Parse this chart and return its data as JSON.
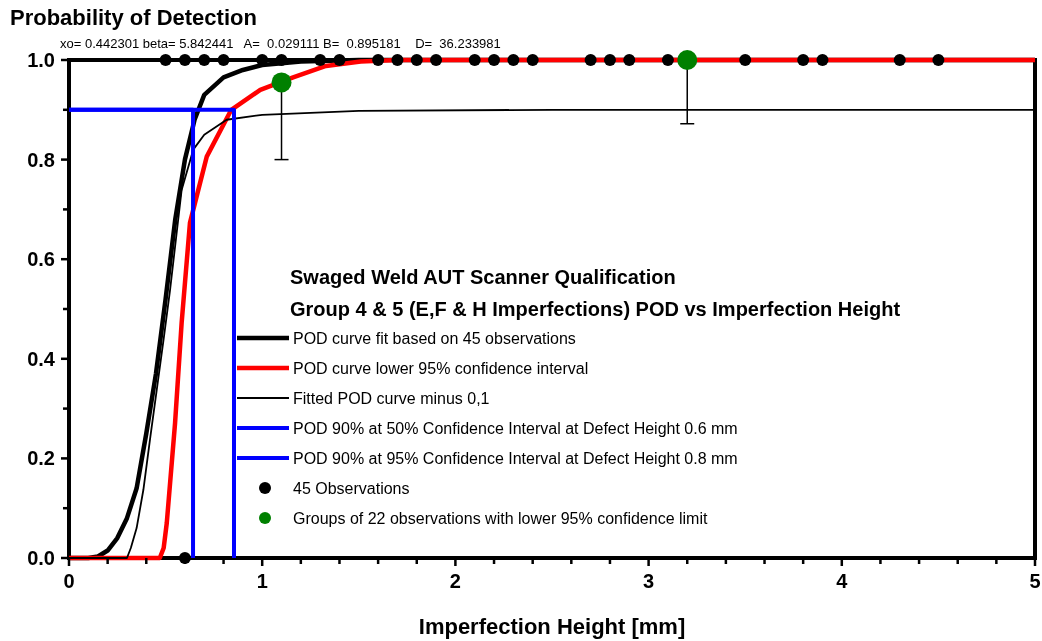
{
  "chart_data": {
    "type": "line",
    "title": "Probability of Detection",
    "subtitle": "xo= 0.442301 beta= 5.842441   A=  0.029111 B=  0.895181    D=  36.233981",
    "xlabel": "Imperfection Height [mm]",
    "legend_title": "Swaged Weld AUT Scanner Qualification\nGroup 4 & 5 (E,F & H Imperfections) POD vs Imperfection Height",
    "legend": "bottom",
    "grid": false,
    "xlim": [
      0,
      5
    ],
    "ylim": [
      0,
      1
    ],
    "xticks": [
      0,
      {
        "value": 0.2,
        "label": null
      },
      {
        "value": 0.4,
        "label": null
      },
      {
        "value": 0.6,
        "label": null
      },
      {
        "value": 0.8,
        "label": null
      },
      1,
      {
        "value": 1.2,
        "label": null
      },
      {
        "value": 1.4,
        "label": null
      },
      {
        "value": 1.6,
        "label": null
      },
      {
        "value": 1.8,
        "label": null
      },
      2,
      {
        "value": 2.2,
        "label": null
      },
      {
        "value": 2.4,
        "label": null
      },
      {
        "value": 2.6,
        "label": null
      },
      {
        "value": 2.8,
        "label": null
      },
      3,
      {
        "value": 3.2,
        "label": null
      },
      {
        "value": 3.4,
        "label": null
      },
      {
        "value": 3.6,
        "label": null
      },
      {
        "value": 3.8,
        "label": null
      },
      4,
      {
        "value": 4.2,
        "label": null
      },
      {
        "value": 4.4,
        "label": null
      },
      {
        "value": 4.6,
        "label": null
      },
      {
        "value": 4.8,
        "label": null
      },
      5
    ],
    "yticks": [
      {
        "value": 0,
        "label": "0.0"
      },
      {
        "value": 0.1,
        "label": null
      },
      {
        "value": 0.2,
        "label": "0.2"
      },
      {
        "value": 0.3,
        "label": null
      },
      {
        "value": 0.4,
        "label": "0.4"
      },
      {
        "value": 0.5,
        "label": null
      },
      {
        "value": 0.6,
        "label": "0.6"
      },
      {
        "value": 0.7,
        "label": null
      },
      {
        "value": 0.8,
        "label": "0.8"
      },
      {
        "value": 0.9,
        "label": null
      },
      {
        "value": 1,
        "label": "1.0"
      }
    ],
    "series": [
      {
        "name": "POD curve fit based on 45 observations",
        "color": "#000000",
        "x": [
          0,
          0.1,
          0.15,
          0.2,
          0.25,
          0.3,
          0.35,
          0.4,
          0.45,
          0.5,
          0.55,
          0.6,
          0.65,
          0.7,
          0.8,
          0.9,
          1.0,
          1.2,
          1.5,
          5
        ],
        "values": [
          0,
          0,
          0.003,
          0.015,
          0.04,
          0.08,
          0.14,
          0.25,
          0.37,
          0.52,
          0.68,
          0.8,
          0.88,
          0.93,
          0.965,
          0.98,
          0.99,
          0.997,
          1,
          1
        ]
      },
      {
        "name": "POD curve lower 95% confidence interval",
        "color": "#ff0000",
        "x": [
          0,
          0.47,
          0.49,
          0.506,
          0.549,
          0.583,
          0.626,
          0.713,
          0.84,
          0.99,
          1.16,
          1.33,
          1.51,
          1.7,
          5
        ],
        "values": [
          0,
          0,
          0.02,
          0.07,
          0.271,
          0.472,
          0.673,
          0.806,
          0.9,
          0.94,
          0.965,
          0.988,
          0.997,
          1,
          1
        ]
      },
      {
        "name": "Fitted POD curve minus 0,1",
        "color": "#000000",
        "x": [
          0,
          0.3,
          0.32,
          0.35,
          0.385,
          0.42,
          0.454,
          0.49,
          0.523,
          0.583,
          0.643,
          0.7,
          0.816,
          1.0,
          1.5,
          2.5,
          5
        ],
        "values": [
          0,
          0,
          0.02,
          0.06,
          0.137,
          0.24,
          0.337,
          0.44,
          0.538,
          0.739,
          0.82,
          0.85,
          0.88,
          0.89,
          0.898,
          0.9,
          0.9
        ]
      },
      {
        "name": "POD 90% at 50% Confidence Interval at Defect Height 0.6 mm",
        "color": "#0000ff",
        "x": [
          0,
          0.642,
          0.642
        ],
        "values": [
          0.9,
          0.9,
          0
        ]
      },
      {
        "name": "POD 90% at 95% Confidence Interval at Defect Height 0.8 mm",
        "color": "#0000ff",
        "x": [
          0,
          0.854,
          0.854
        ],
        "values": [
          0.9,
          0.9,
          0
        ]
      },
      {
        "name": "45 Observations",
        "type": "scatter",
        "marker": "circle",
        "color": "#000000",
        "x": [
          0.5,
          0.6,
          0.7,
          0.8,
          1.0,
          1.1,
          1.3,
          1.4,
          1.6,
          1.7,
          1.8,
          1.9,
          2.1,
          2.2,
          2.3,
          2.4,
          2.7,
          2.8,
          2.9,
          3.1,
          3.5,
          3.8,
          3.9,
          4.3,
          4.5,
          0.6
        ],
        "values": [
          1,
          1,
          1,
          1,
          1,
          1,
          1,
          1,
          1,
          1,
          1,
          1,
          1,
          1,
          1,
          1,
          1,
          1,
          1,
          1,
          1,
          1,
          1,
          1,
          1,
          0
        ]
      },
      {
        "name": "Groups of 22 observations with lower 95% confidence limit",
        "type": "scatter",
        "marker": "circle",
        "color": "#008000",
        "x": [
          1.1,
          3.2
        ],
        "values": [
          0.955,
          1
        ],
        "errors": [
          [
            0.8,
            0.955
          ],
          [
            0.872,
            1
          ]
        ]
      }
    ]
  }
}
